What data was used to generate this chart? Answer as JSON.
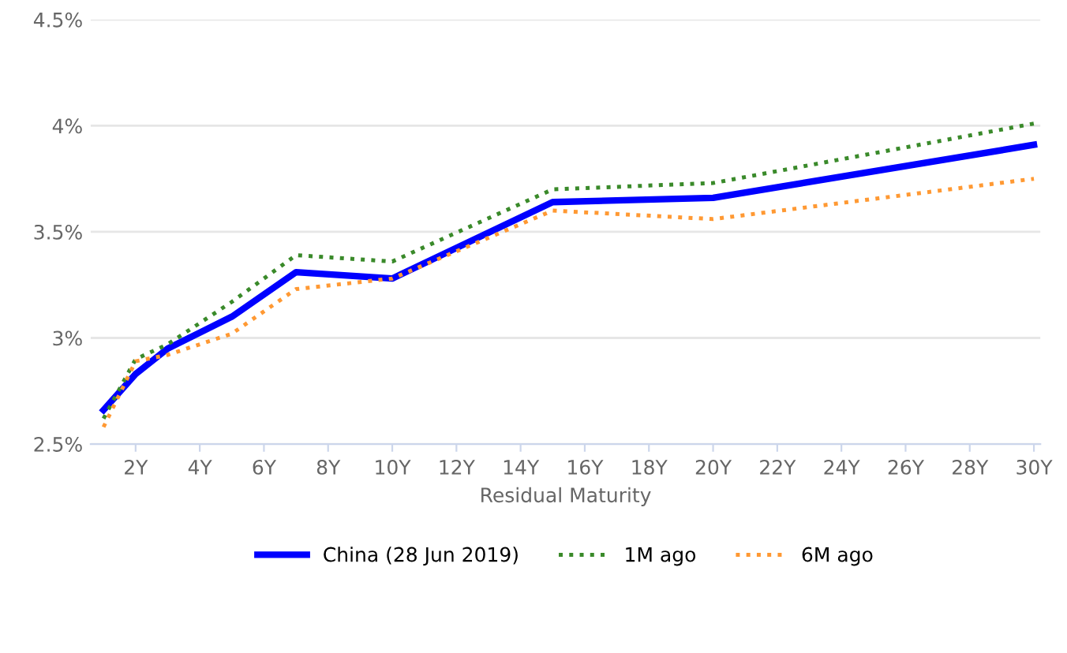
{
  "chart_data": {
    "type": "line",
    "xlabel": "Residual Maturity",
    "xlim": [
      0.6,
      30.2
    ],
    "xticks": [
      {
        "value": 2,
        "label": "2Y"
      },
      {
        "value": 4,
        "label": "4Y"
      },
      {
        "value": 6,
        "label": "6Y"
      },
      {
        "value": 8,
        "label": "8Y"
      },
      {
        "value": 10,
        "label": "10Y"
      },
      {
        "value": 12,
        "label": "12Y"
      },
      {
        "value": 14,
        "label": "14Y"
      },
      {
        "value": 16,
        "label": "16Y"
      },
      {
        "value": 18,
        "label": "18Y"
      },
      {
        "value": 20,
        "label": "20Y"
      },
      {
        "value": 22,
        "label": "22Y"
      },
      {
        "value": 24,
        "label": "24Y"
      },
      {
        "value": 26,
        "label": "26Y"
      },
      {
        "value": 28,
        "label": "28Y"
      },
      {
        "value": 30,
        "label": "30Y"
      }
    ],
    "ylim": [
      2.5,
      4.5
    ],
    "yticks": [
      {
        "value": 2.5,
        "label": "2.5%"
      },
      {
        "value": 3,
        "label": "3%"
      },
      {
        "value": 3.5,
        "label": "3.5%"
      },
      {
        "value": 4,
        "label": "4%"
      },
      {
        "value": 4.5,
        "label": "4.5%"
      }
    ],
    "grid": "y",
    "legend": "bottom",
    "x": [
      1,
      2,
      3,
      5,
      7,
      10,
      15,
      20,
      30
    ],
    "series": [
      {
        "name": "China (28 Jun 2019)",
        "color": "#0000ff",
        "line_style": "solid",
        "values": [
          2.66,
          2.83,
          2.95,
          3.1,
          3.31,
          3.28,
          3.64,
          3.66,
          3.91
        ]
      },
      {
        "name": "1M ago",
        "color": "#3a8a2a",
        "line_style": "dotted",
        "values": [
          2.62,
          2.9,
          2.97,
          3.17,
          3.39,
          3.36,
          3.7,
          3.73,
          4.01
        ]
      },
      {
        "name": "6M ago",
        "color": "#ff9933",
        "line_style": "dotted",
        "values": [
          2.58,
          2.89,
          2.92,
          3.02,
          3.23,
          3.28,
          3.6,
          3.56,
          3.75
        ]
      }
    ]
  }
}
